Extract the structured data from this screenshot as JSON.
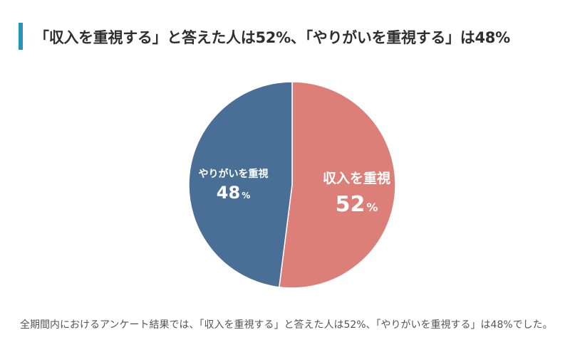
{
  "title": "「収入を重視する」と答えた人は52%、「やりがいを重視する」は48%",
  "caption": "全期間内におけるアンケート結果では、「収入を重視する」と答えた人は52%、「やりがいを重視する」は48%でした。",
  "colors": {
    "accent_bar": "#2592b8",
    "income": "#dc7f78",
    "fulfillment": "#4a6f97",
    "label_text": "#ffffff"
  },
  "chart_data": {
    "type": "pie",
    "title": "",
    "slices": [
      {
        "label": "収入を重視",
        "value": 52,
        "unit": "%",
        "color": "#dc7f78"
      },
      {
        "label": "やりがいを重視",
        "value": 48,
        "unit": "%",
        "color": "#4a6f97"
      }
    ],
    "start": "12 o'clock",
    "direction": "clockwise",
    "legend": "none"
  }
}
